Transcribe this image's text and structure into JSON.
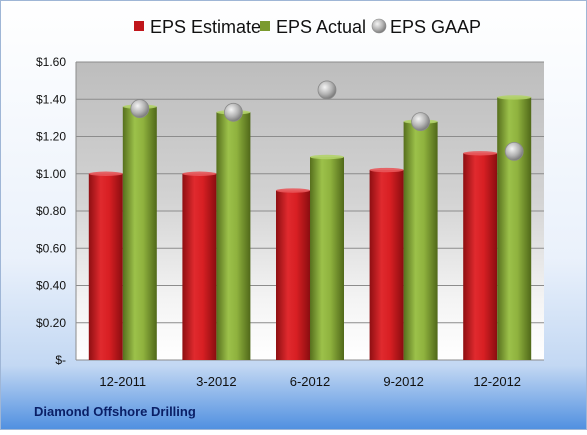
{
  "chart_data": {
    "type": "bar",
    "categories": [
      "12-2011",
      "3-2012",
      "6-2012",
      "9-2012",
      "12-2012"
    ],
    "series": [
      {
        "name": "EPS Estimate",
        "kind": "bar",
        "color": "#c0161b",
        "values": [
          1.0,
          1.0,
          0.91,
          1.02,
          1.11
        ]
      },
      {
        "name": "EPS Actual",
        "kind": "bar",
        "color": "#7a9a2e",
        "values": [
          1.36,
          1.33,
          1.09,
          1.28,
          1.41
        ]
      },
      {
        "name": "EPS GAAP",
        "kind": "scatter",
        "color": "#a8a8a8",
        "values": [
          1.35,
          1.33,
          1.45,
          1.28,
          1.12
        ]
      }
    ],
    "y_ticks": [
      "$-",
      "$0.20",
      "$0.40",
      "$0.60",
      "$0.80",
      "$1.00",
      "$1.20",
      "$1.40",
      "$1.60"
    ],
    "ylim": [
      0,
      1.6
    ],
    "legend_position": "top",
    "grid": true
  },
  "company_label": "Diamond Offshore Drilling"
}
